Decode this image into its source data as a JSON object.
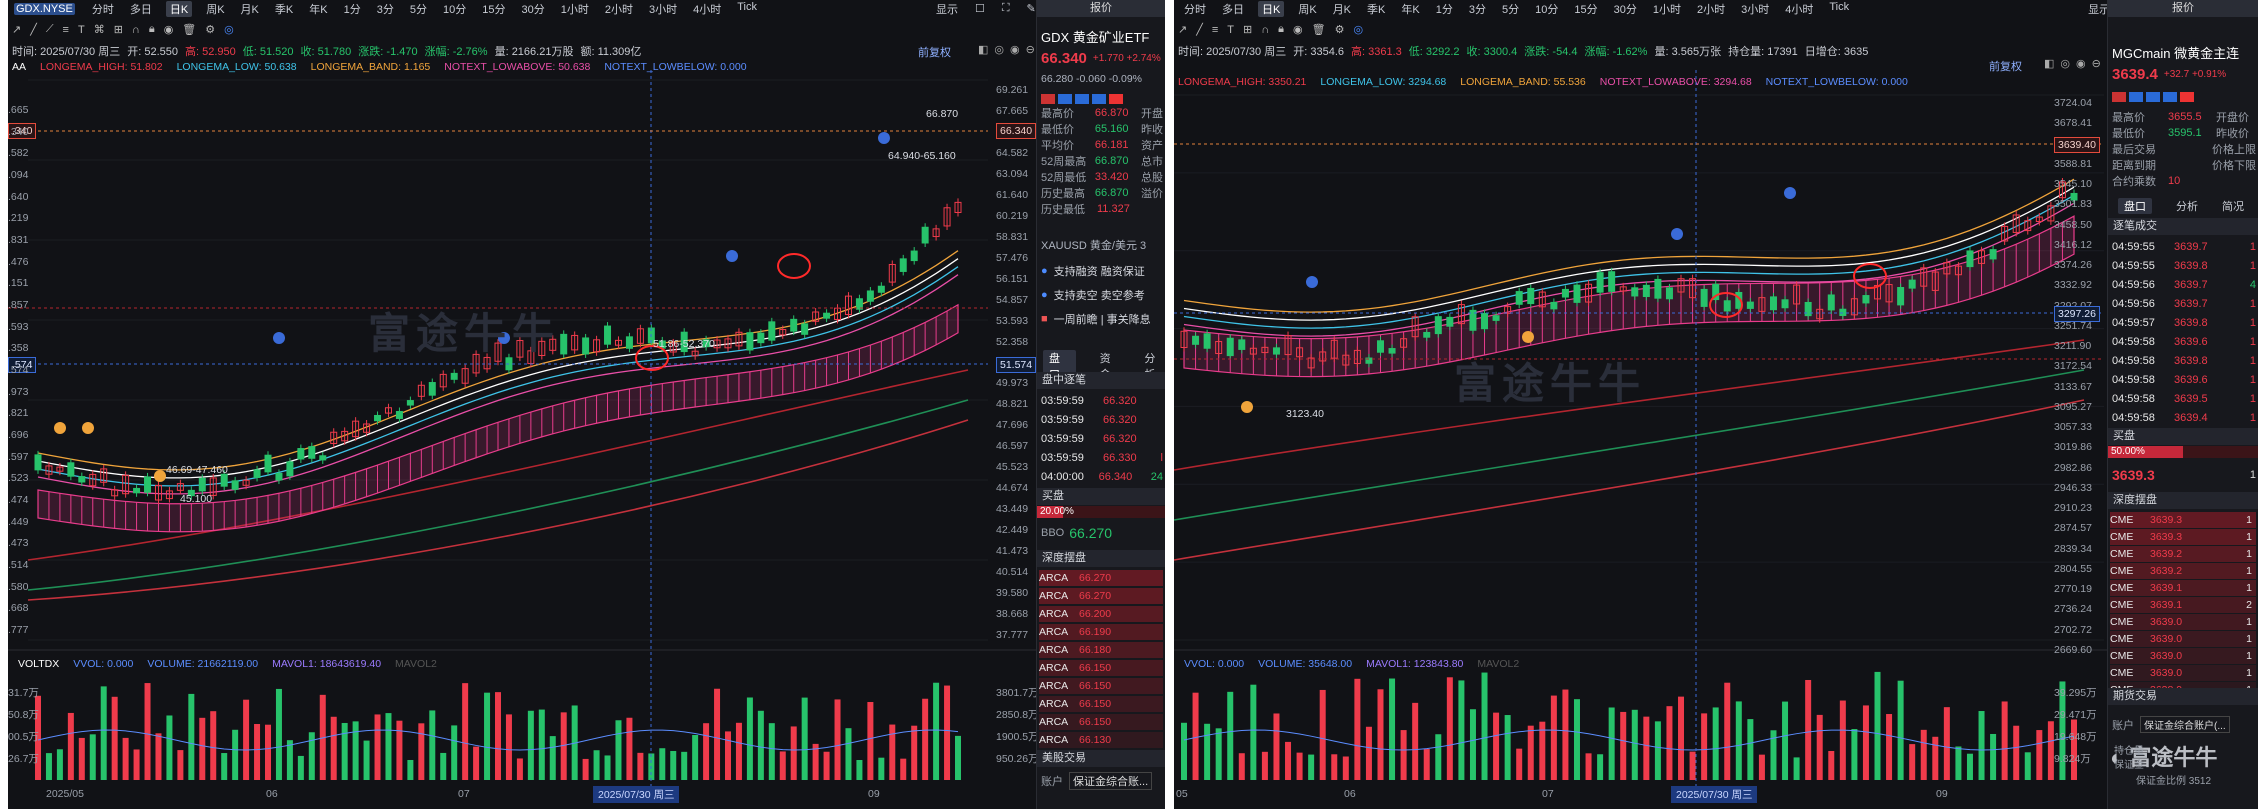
{
  "left": {
    "toolbar": {
      "ticker": "GDX.NYSE",
      "periods": [
        "分时",
        "多日",
        "日K",
        "周K",
        "月K",
        "季K",
        "年K",
        "1分",
        "3分",
        "5分",
        "10分",
        "15分",
        "30分",
        "1小时",
        "2小时",
        "3小时",
        "4小时",
        "Tick"
      ],
      "active": "日K",
      "display": "显示",
      "right": "VS"
    },
    "ohlc": {
      "time": "时间: 2025/07/30 周三",
      "open": "开: 52.550",
      "high": "高: 52.950",
      "low": "低: 51.520",
      "close": "收: 51.780",
      "chg": "涨跌: -1.470",
      "chg_pct": "涨幅: -2.76%",
      "vol": "量: 2166.21万股",
      "amp": "额: 11.309亿"
    },
    "adjust": "前复权",
    "indicator": {
      "name": "AA",
      "items": [
        "LONGEMA_HIGH: 51.802",
        "LONGEMA_LOW: 50.638",
        "LONGEMA_BAND: 1.165",
        "NOTEXT_LOWABOVE: 50.638",
        "NOTEXT_LOWBELOW: 0.000"
      ]
    },
    "yaxis": [
      "69.261",
      "67.665",
      "66.070",
      "64.582",
      "63.094",
      "61.640",
      "60.219",
      "58.831",
      "57.476",
      "56.151",
      "54.857",
      "53.593",
      "52.358",
      "51.152",
      "49.973",
      "48.821",
      "47.696",
      "46.597",
      "45.523",
      "44.674",
      "43.449",
      "42.449",
      "41.473",
      "40.514",
      "39.580",
      "38.668",
      "37.777"
    ],
    "yaxis_left": [
      ".665",
      ".340",
      ".582",
      ".094",
      ".640",
      ".219",
      ".831",
      ".476",
      ".151",
      ".857",
      ".593",
      ".358",
      ".574",
      ".973",
      ".821",
      ".696",
      ".597",
      ".523",
      ".474",
      ".449",
      ".473",
      ".514",
      ".580",
      ".668",
      ".777"
    ],
    "last_price_tag": "66.340",
    "cross_price_tag": "51.574",
    "left_price_tag": ".340",
    "left_cross_tag": ".574",
    "annotations": {
      "high": "66.870",
      "range": "64.940-65.160",
      "low": "45.100",
      "mid": "51.86-52.370",
      "low_range": "46.69-47.460"
    },
    "volume": {
      "name": "VOLTDX",
      "items": [
        "VVOL: 0.000",
        "VOLUME: 21662119.00",
        "MAVOL1: 18643619.40",
        "MAVOL2"
      ]
    },
    "vol_axis": [
      "3801.7万",
      "2850.8万",
      "1900.5万",
      "950.26万"
    ],
    "vol_axis_left": [
      "31.7万",
      "50.8万",
      "00.5万",
      "26.7万"
    ],
    "xaxis": [
      "2025/05",
      "06",
      "07",
      "08",
      "09"
    ],
    "cross_date": "2025/07/30 周三",
    "watermark": "富途牛牛"
  },
  "left_side": {
    "header": "报价",
    "name": "GDX 黄金矿业ETF",
    "price": "66.340",
    "change": "+1.770 +2.74%",
    "pre": "66.280 -0.060 -0.09%",
    "stats": [
      [
        "最高价",
        "66.870",
        "开盘"
      ],
      [
        "最低价",
        "65.160",
        "昨收"
      ],
      [
        "平均价",
        "66.181",
        "资产"
      ],
      [
        "52周最高",
        "66.870",
        "总市"
      ],
      [
        "52周最低",
        "33.420",
        "总股"
      ],
      [
        "历史最高",
        "66.870",
        "溢价"
      ],
      [
        "历史最低",
        "11.327",
        ""
      ]
    ],
    "related": "XAUUSD 黄金/美元 3",
    "tags": [
      "支持融资 融资保证",
      "支持卖空 卖空参考",
      "一周前瞻 | 事关降息"
    ],
    "tabs": [
      "盘口",
      "资金",
      "分析"
    ],
    "trades_title": "盘中逐笔",
    "trades": [
      [
        "03:59:59",
        "66.320",
        ""
      ],
      [
        "03:59:59",
        "66.320",
        ""
      ],
      [
        "03:59:59",
        "66.320",
        ""
      ],
      [
        "03:59:59",
        "66.330",
        "l"
      ],
      [
        "04:00:00",
        "66.340",
        "24"
      ]
    ],
    "buy_title": "买盘",
    "buy_pct": "20.00%",
    "bbo": "BBO",
    "bbo_price": "66.270",
    "depth_title": "深度摆盘",
    "depth": [
      [
        "ARCA",
        "66.270"
      ],
      [
        "ARCA",
        "66.270"
      ],
      [
        "ARCA",
        "66.200"
      ],
      [
        "ARCA",
        "66.190"
      ],
      [
        "ARCA",
        "66.180"
      ],
      [
        "ARCA",
        "66.150"
      ],
      [
        "ARCA",
        "66.150"
      ],
      [
        "ARCA",
        "66.150"
      ],
      [
        "ARCA",
        "66.150"
      ],
      [
        "ARCA",
        "66.130"
      ]
    ],
    "trade_title": "美股交易",
    "account_label": "账户",
    "account": "保证金综合账..."
  },
  "right": {
    "toolbar": {
      "periods": [
        "分时",
        "多日",
        "日K",
        "周K",
        "月K",
        "季K",
        "年K",
        "1分",
        "3分",
        "5分",
        "10分",
        "15分",
        "30分",
        "1小时",
        "2小时",
        "3小时",
        "4小时",
        "Tick"
      ],
      "active": "日K",
      "display": "显示"
    },
    "ohlc": {
      "time": "时间: 2025/07/30 周三",
      "open": "开: 3354.6",
      "high": "高: 3361.3",
      "low": "低: 3292.2",
      "close": "收: 3300.4",
      "chg": "涨跌: -54.4",
      "chg_pct": "涨幅: -1.62%",
      "vol": "量: 3.565万张",
      "oi": "持仓量: 17391",
      "oi_chg": "日增仓: 3635"
    },
    "adjust": "前复权",
    "indicator": {
      "items": [
        "LONGEMA_HIGH: 3350.21",
        "LONGEMA_LOW: 3294.68",
        "LONGEMA_BAND: 55.536",
        "NOTEXT_LOWABOVE: 3294.68",
        "NOTEXT_LOWBELOW: 0.000"
      ]
    },
    "yaxis": [
      "3724.04",
      "3678.41",
      "3633.46",
      "3588.81",
      "3545.10",
      "3501.83",
      "3458.50",
      "3416.12",
      "3374.26",
      "3332.92",
      "3292.07",
      "3251.74",
      "3211.90",
      "3172.54",
      "3133.67",
      "3095.27",
      "3057.33",
      "3019.86",
      "2982.86",
      "2946.33",
      "2910.23",
      "2874.57",
      "2839.34",
      "2804.55",
      "2770.19",
      "2736.24",
      "2702.72",
      "2669.60"
    ],
    "last_price_tag": "3639.40",
    "cross_price_tag": "3297.26",
    "annotations": {
      "high": "3655.50",
      "low": "3123.40"
    },
    "volume": {
      "items": [
        "VVOL: 0.000",
        "VOLUME: 35648.00",
        "MAVOL1: 123843.80",
        "MAVOL2"
      ]
    },
    "vol_axis": [
      "39.295万",
      "29.471万",
      "19.648万",
      "9.824万"
    ],
    "xaxis": [
      "05",
      "06",
      "07",
      "08",
      "09"
    ],
    "cross_date": "2025/07/30 周三",
    "watermark": "富途牛牛"
  },
  "right_side": {
    "header": "报价",
    "name": "MGCmain 微黄金主连",
    "price": "3639.4",
    "change": "+32.7 +0.91%",
    "stats": [
      [
        "最高价",
        "3655.5",
        "开盘价"
      ],
      [
        "最低价",
        "3595.1",
        "昨收价"
      ],
      [
        "最后交易",
        "",
        "价格上限"
      ],
      [
        "距离到期",
        "",
        "价格下限"
      ],
      [
        "合约乘数",
        "10",
        ""
      ]
    ],
    "tabs": [
      "盘口",
      "分析",
      "简况"
    ],
    "trades_title": "逐笔成交",
    "trades": [
      [
        "04:59:55",
        "3639.7",
        "1"
      ],
      [
        "04:59:55",
        "3639.8",
        "1"
      ],
      [
        "04:59:56",
        "3639.7",
        "4"
      ],
      [
        "04:59:56",
        "3639.7",
        "1"
      ],
      [
        "04:59:57",
        "3639.8",
        "1"
      ],
      [
        "04:59:58",
        "3639.6",
        "1"
      ],
      [
        "04:59:58",
        "3639.8",
        "1"
      ],
      [
        "04:59:58",
        "3639.6",
        "1"
      ],
      [
        "04:59:58",
        "3639.5",
        "1"
      ],
      [
        "04:59:58",
        "3639.4",
        "1"
      ]
    ],
    "buy_title": "买盘",
    "buy_pct": "50.00%",
    "buy_price": "3639.3",
    "buy_qty": "1",
    "depth_title": "深度摆盘",
    "depth": [
      [
        "CME",
        "3639.3",
        "1"
      ],
      [
        "CME",
        "3639.3",
        "1"
      ],
      [
        "CME",
        "3639.2",
        "1"
      ],
      [
        "CME",
        "3639.2",
        "1"
      ],
      [
        "CME",
        "3639.1",
        "1"
      ],
      [
        "CME",
        "3639.1",
        "2"
      ],
      [
        "CME",
        "3639.0",
        "1"
      ],
      [
        "CME",
        "3639.0",
        "1"
      ],
      [
        "CME",
        "3639.0",
        "1"
      ],
      [
        "CME",
        "3639.0",
        "1"
      ],
      [
        "CME",
        "3638.9",
        "1"
      ]
    ],
    "trade_title": "期货交易",
    "account_label": "账户",
    "account": "保证金综合账户(...",
    "logo": "富途牛牛",
    "overlay_labels": [
      "持仓量",
      "保证金"
    ],
    "overlay_value": "保证金比例 3512"
  },
  "colors": {
    "up": "#ef3b4b",
    "down": "#27c36b",
    "bg": "#111216",
    "accent": "#3a6bd8"
  }
}
